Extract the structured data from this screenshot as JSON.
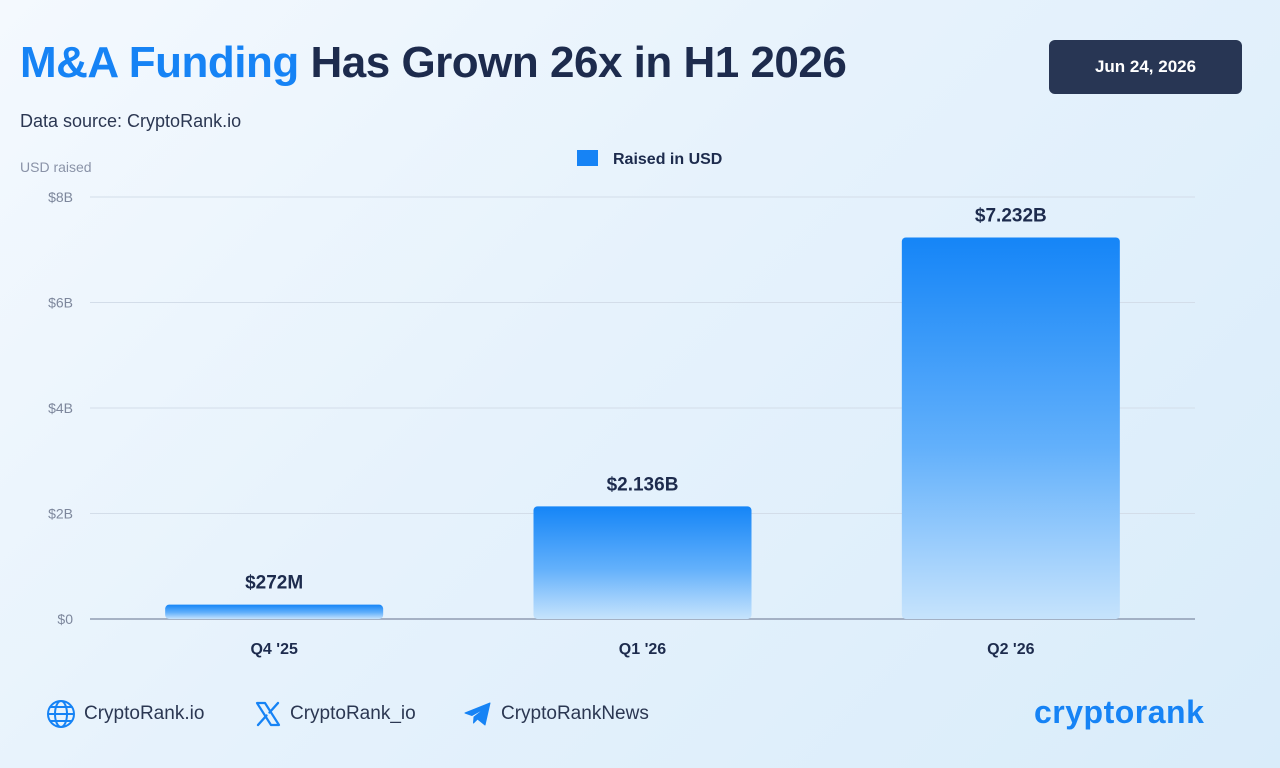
{
  "header": {
    "title_accent": "M&A Funding",
    "title_rest": "Has Grown 26x in H1 2026",
    "source": "Data source: CryptoRank.io",
    "date": "Jun 24, 2026"
  },
  "chart_data": {
    "type": "bar",
    "title": "M&A Funding Has Grown 26x in H1 2026",
    "ylabel": "USD raised",
    "xlabel": "",
    "categories": [
      "Q4 '25",
      "Q1 '26",
      "Q2 '26"
    ],
    "series": [
      {
        "name": "Raised in USD",
        "values": [
          0.272,
          2.136,
          7.232
        ]
      }
    ],
    "value_unit": "USD billions",
    "data_labels": [
      "$272M",
      "$2.136B",
      "$7.232B"
    ],
    "ylim": [
      0,
      8
    ],
    "yticks": [
      0,
      2,
      4,
      6,
      8
    ],
    "ytick_labels": [
      "$0",
      "$2B",
      "$4B",
      "$6B",
      "$8B"
    ],
    "grid": true,
    "legend_position": "top-center",
    "colors": {
      "bar_top": "#1585f7",
      "bar_bottom": "#c6e3fc"
    }
  },
  "footer": {
    "links": [
      {
        "icon": "globe-icon",
        "label": "CryptoRank.io"
      },
      {
        "icon": "x-logo-icon",
        "label": "CryptoRank_io"
      },
      {
        "icon": "telegram-icon",
        "label": "CryptoRankNews"
      }
    ],
    "brand": "cryptorank"
  }
}
